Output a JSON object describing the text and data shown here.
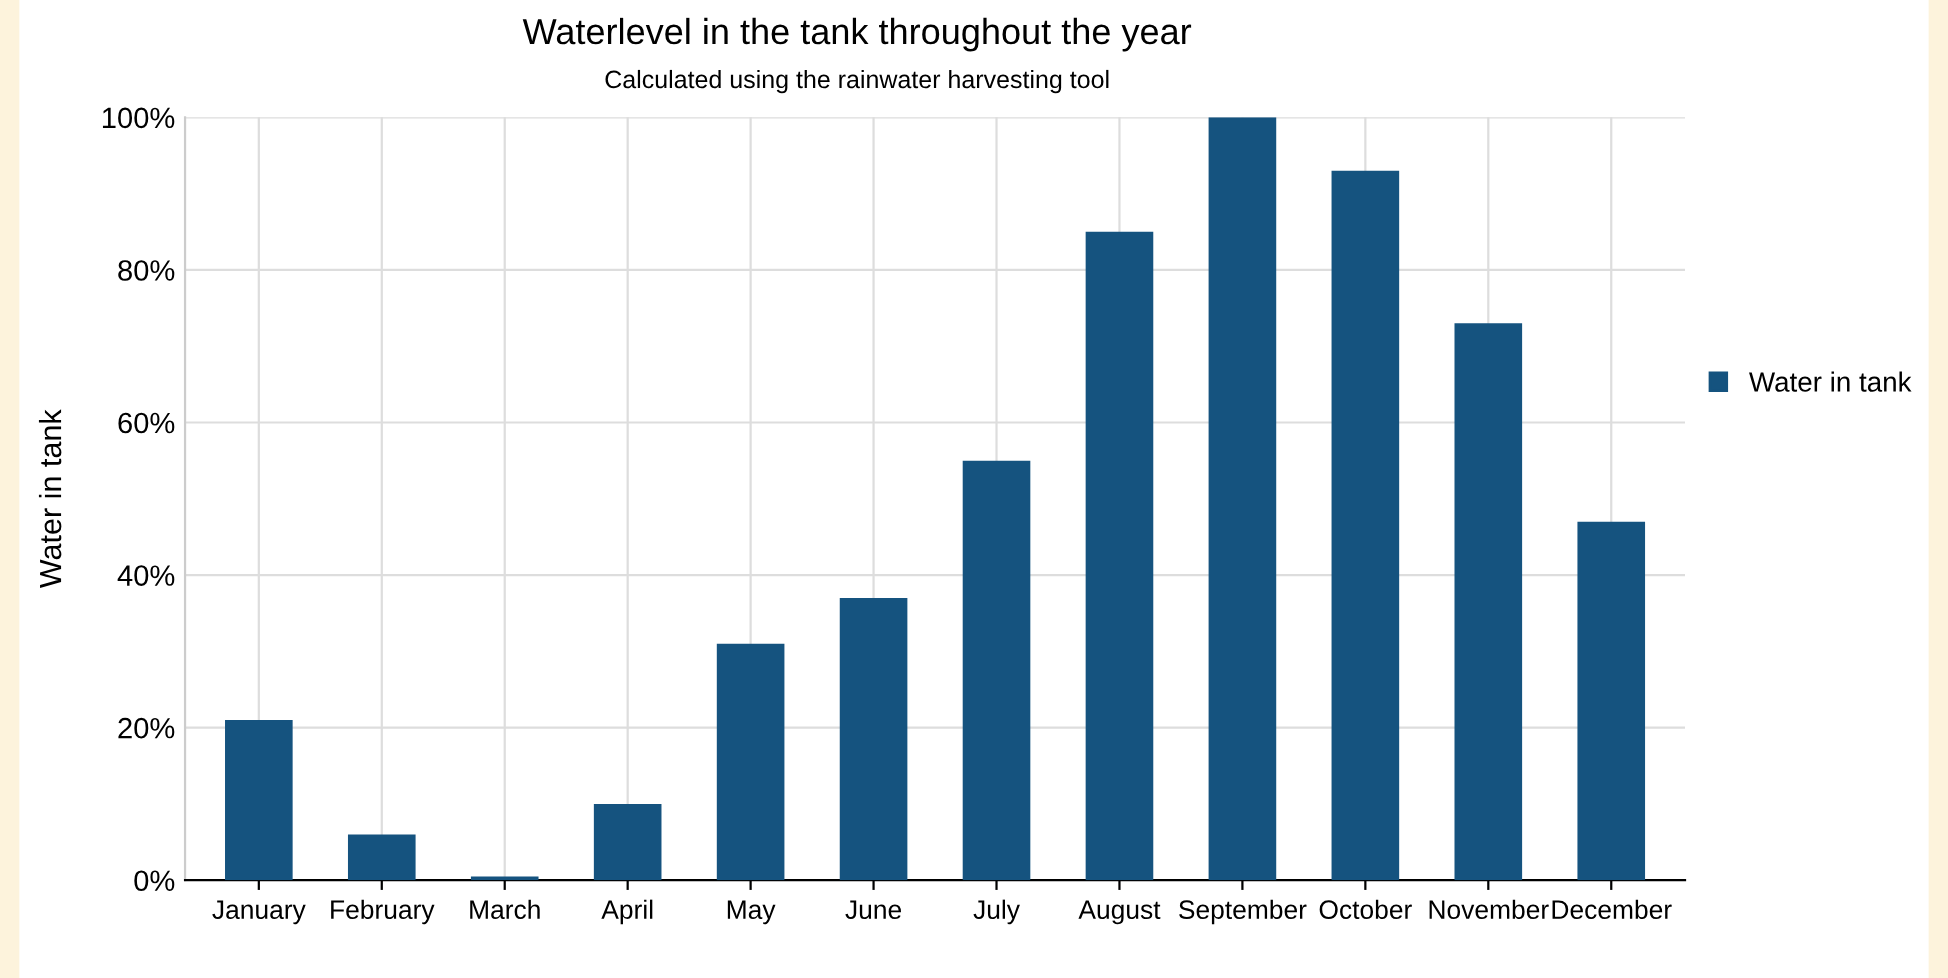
{
  "chart_data": {
    "type": "bar",
    "title": "Waterlevel in the tank throughout the year",
    "subtitle": "Calculated using the rainwater harvesting tool",
    "ylabel": "Water in tank",
    "categories": [
      "January",
      "February",
      "March",
      "April",
      "May",
      "June",
      "July",
      "August",
      "September",
      "October",
      "November",
      "December"
    ],
    "series": [
      {
        "name": "Water in tank",
        "color": "#15537f",
        "values": [
          21,
          6,
          0.5,
          10,
          31,
          37,
          55,
          85,
          100,
          93,
          73,
          47
        ]
      }
    ],
    "ylim": [
      0,
      100
    ],
    "yticks": [
      {
        "value": 0,
        "label": "0%"
      },
      {
        "value": 20,
        "label": "20%"
      },
      {
        "value": 40,
        "label": "40%"
      },
      {
        "value": 60,
        "label": "60%"
      },
      {
        "value": 80,
        "label": "80%"
      },
      {
        "value": 100,
        "label": "100%"
      }
    ],
    "grid": true,
    "legend": "right"
  }
}
